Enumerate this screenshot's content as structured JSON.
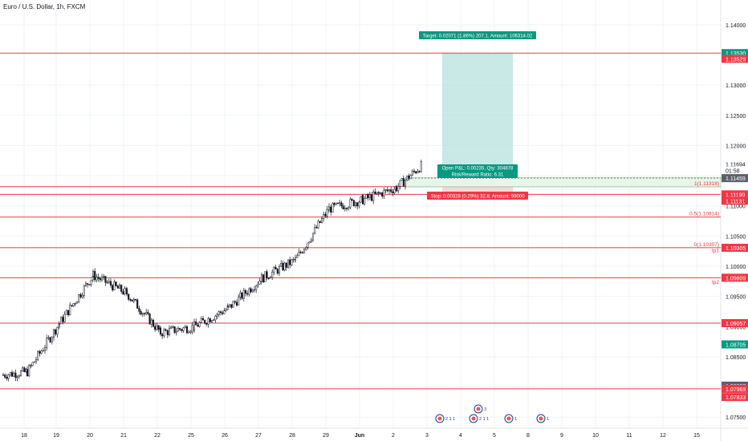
{
  "symbol_title": "Euro / U.S. Dollar, 1h, FXCM",
  "colors": {
    "up": "#26a69a",
    "down": "#ef5350",
    "candle": "#131722",
    "level_line": "#f23645",
    "target_zone": "#b2dfdb",
    "stop_zone": "#f8c4c4",
    "profit_label_bg": "#089981",
    "stop_label_bg": "#f23645",
    "price_tag_red": "#f23645",
    "price_tag_green": "#089981",
    "price_tag_gray": "#5d606b",
    "grid": "#f0f3fa",
    "axis_text": "#131722"
  },
  "price_scale": {
    "ticks": [
      "1.14000",
      "1.13500",
      "1.13000",
      "1.12500",
      "1.12000",
      "1.11500",
      "1.11000",
      "1.10500",
      "1.10000",
      "1.09500",
      "1.09000",
      "1.08500",
      "1.08000",
      "1.07500"
    ]
  },
  "price_tags": [
    {
      "text": "1.13530",
      "kind": "green",
      "price": 1.1353
    },
    {
      "text": "1.13529",
      "kind": "red",
      "price": 1.13435
    },
    {
      "text": "1.11694",
      "kind": "plain",
      "price": 1.11694
    },
    {
      "text": "01:58",
      "kind": "plain",
      "price": 1.1159
    },
    {
      "text": "1.11459",
      "kind": "gray",
      "price": 1.11459
    },
    {
      "text": "1.11190",
      "kind": "red",
      "price": 1.1119
    },
    {
      "text": "1.11131",
      "kind": "red",
      "price": 1.11085
    },
    {
      "text": "1.10305",
      "kind": "red",
      "price": 1.10305
    },
    {
      "text": "1.09809",
      "kind": "red",
      "price": 1.09809
    },
    {
      "text": "1.09057",
      "kind": "red",
      "price": 1.09057
    },
    {
      "text": "1.08705",
      "kind": "green",
      "price": 1.08705
    },
    {
      "text": "1.08022",
      "kind": "gray",
      "price": 1.08022
    },
    {
      "text": "1.07969",
      "kind": "red",
      "price": 1.07969
    },
    {
      "text": "1.07833",
      "kind": "red",
      "price": 1.07833
    }
  ],
  "horizontal_levels": [
    1.1353,
    1.11318,
    1.1119,
    1.10814,
    1.10307,
    1.09809,
    1.09057,
    1.07969
  ],
  "fib_labels": [
    {
      "text": "1(1.11318)",
      "price": 1.11318
    },
    {
      "text": "0.5(1.10814)",
      "price": 1.10814
    },
    {
      "text": "0(1.10307)",
      "price": 1.10307
    },
    {
      "text": "tp1",
      "price": 1.10205
    },
    {
      "text": "tp2",
      "price": 1.0968
    }
  ],
  "date_axis": {
    "labels": [
      "18",
      "19",
      "20",
      "21",
      "22",
      "25",
      "26",
      "27",
      "28",
      "29",
      "Jun",
      "2",
      "3",
      "4",
      "5",
      "8",
      "9",
      "10",
      "11",
      "12",
      "15"
    ]
  },
  "position_tool": {
    "target_label": "Target: 0.02071 (1.86%) 207.1, Amount: 106314.02",
    "open_pnl_label": "Open P&L: 0.00235, Qty: 304878",
    "risk_reward_label": "Risk/Reward Ratio: 6.31",
    "stop_label": "Stop: 0.00328 (0.29%) 32.8, Amount: 99000",
    "entry": 1.11459,
    "target": 1.1353,
    "stop": 1.11131
  },
  "event_markers": [
    {
      "text": "2",
      "sub": "1",
      "label": "2 1 1"
    },
    {
      "text": "2",
      "sub": "1",
      "label": "2 1 1"
    },
    {
      "text": "1",
      "label": "1"
    },
    {
      "text": "1",
      "label": "1"
    },
    {
      "text": "3",
      "label": "3"
    }
  ],
  "chart_data": {
    "type": "candlestick",
    "title": "Euro / U.S. Dollar, 1h, FXCM",
    "ylim": [
      1.0745,
      1.1425
    ],
    "x_categories": [
      "18",
      "19",
      "20",
      "21",
      "22",
      "25",
      "26",
      "27",
      "28",
      "29",
      "Jun",
      "2",
      "3",
      "4",
      "5",
      "8",
      "9",
      "10",
      "11",
      "12",
      "15"
    ],
    "last_price": 1.11694,
    "series_close_path": [
      {
        "x": "18",
        "y": 1.0825
      },
      {
        "x": "19",
        "y": 1.0905
      },
      {
        "x": "20",
        "y": 1.0985
      },
      {
        "x": "21",
        "y": 1.0955
      },
      {
        "x": "22",
        "y": 1.089
      },
      {
        "x": "25",
        "y": 1.09
      },
      {
        "x": "26",
        "y": 1.093
      },
      {
        "x": "27",
        "y": 1.098
      },
      {
        "x": "28",
        "y": 1.101
      },
      {
        "x": "29",
        "y": 1.1095
      },
      {
        "x": "Jun",
        "y": 1.111
      },
      {
        "x": "2",
        "y": 1.113
      },
      {
        "x": "2.5",
        "y": 1.1169
      }
    ]
  }
}
